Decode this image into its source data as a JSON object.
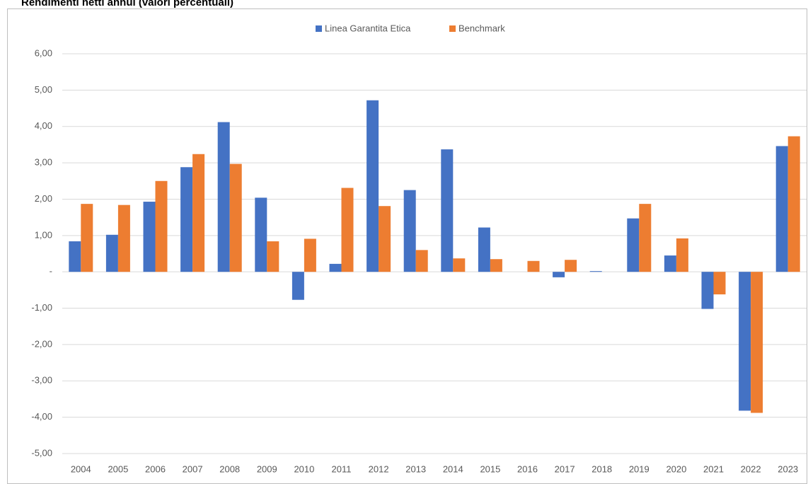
{
  "chart_data": {
    "type": "bar",
    "title": "Rendimenti netti annui (valori percentuali)",
    "categories": [
      "2004",
      "2005",
      "2006",
      "2007",
      "2008",
      "2009",
      "2010",
      "2011",
      "2012",
      "2013",
      "2014",
      "2015",
      "2016",
      "2017",
      "2018",
      "2019",
      "2020",
      "2021",
      "2022",
      "2023"
    ],
    "series": [
      {
        "name": "Linea Garantita Etica",
        "color": "#4472c4",
        "values": [
          0.84,
          1.02,
          1.93,
          2.88,
          4.12,
          2.04,
          -0.77,
          0.22,
          4.72,
          2.25,
          3.37,
          1.22,
          0,
          -0.15,
          0.02,
          1.47,
          0.45,
          -1.02,
          -3.82,
          3.46
        ]
      },
      {
        "name": "Benchmark",
        "color": "#ed7d31",
        "values": [
          1.87,
          1.84,
          2.5,
          3.24,
          2.97,
          0.84,
          0.91,
          2.31,
          1.81,
          0.6,
          0.37,
          0.35,
          0.3,
          0.33,
          0,
          1.87,
          0.92,
          -0.62,
          -3.88,
          3.73
        ]
      }
    ],
    "ylim": [
      -5,
      6
    ],
    "yticks": [
      {
        "value": -5,
        "label": "-5,00"
      },
      {
        "value": -4,
        "label": "-4,00"
      },
      {
        "value": -3,
        "label": "-3,00"
      },
      {
        "value": -2,
        "label": "-2,00"
      },
      {
        "value": -1,
        "label": "-1,00"
      },
      {
        "value": 0,
        "label": "-"
      },
      {
        "value": 1,
        "label": "1,00"
      },
      {
        "value": 2,
        "label": "2,00"
      },
      {
        "value": 3,
        "label": "3,00"
      },
      {
        "value": 4,
        "label": "4,00"
      },
      {
        "value": 5,
        "label": "5,00"
      },
      {
        "value": 6,
        "label": "6,00"
      }
    ],
    "grid": true,
    "legend": "top"
  }
}
